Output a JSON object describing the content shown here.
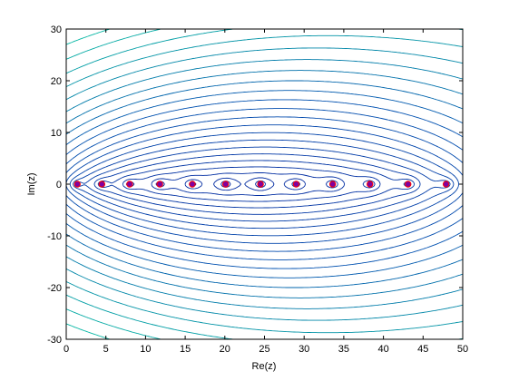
{
  "chart_data": {
    "type": "contour",
    "title": "",
    "xlabel": "Re(z)",
    "ylabel": "Im(z)",
    "xlim": [
      0,
      50
    ],
    "ylim": [
      -30,
      30
    ],
    "x_ticks": [
      "0",
      "5",
      "10",
      "15",
      "20",
      "25",
      "30",
      "35",
      "40",
      "45",
      "50"
    ],
    "y_ticks": [
      "-30",
      "-20",
      "-10",
      "0",
      "10",
      "20",
      "30"
    ],
    "x_tick_values": [
      0,
      5,
      10,
      15,
      20,
      25,
      30,
      35,
      40,
      45,
      50
    ],
    "y_tick_values": [
      -30,
      -20,
      -10,
      0,
      10,
      20,
      30
    ],
    "grid": false,
    "zeros": [
      {
        "x": 1.4,
        "y": 0
      },
      {
        "x": 4.5,
        "y": 0
      },
      {
        "x": 8.0,
        "y": 0
      },
      {
        "x": 11.8,
        "y": 0
      },
      {
        "x": 15.9,
        "y": 0
      },
      {
        "x": 20.1,
        "y": 0
      },
      {
        "x": 24.5,
        "y": 0
      },
      {
        "x": 29.0,
        "y": 0
      },
      {
        "x": 33.6,
        "y": 0
      },
      {
        "x": 38.3,
        "y": 0
      },
      {
        "x": 43.1,
        "y": 0
      },
      {
        "x": 47.9,
        "y": 0
      }
    ],
    "contour_levels": 34,
    "colors": {
      "contour_dark": "#00008f",
      "contour_mid": "#0050b0",
      "contour_light": "#00c0a0",
      "zero_marker_edge": "#ff0000",
      "zero_marker_fill": "#8000a0",
      "axes": "#000000"
    }
  }
}
